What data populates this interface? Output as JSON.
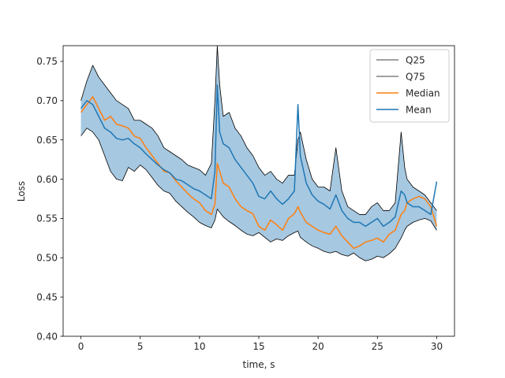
{
  "chart_data": {
    "type": "line",
    "title": "",
    "xlabel": "time, s",
    "ylabel": "Loss",
    "xlim": [
      -1.5,
      31.5
    ],
    "ylim": [
      0.4,
      0.77
    ],
    "xticks": [
      {
        "value": 0,
        "label": "0"
      },
      {
        "value": 5,
        "label": "5"
      },
      {
        "value": 10,
        "label": "10"
      },
      {
        "value": 15,
        "label": "15"
      },
      {
        "value": 20,
        "label": "20"
      },
      {
        "value": 25,
        "label": "25"
      },
      {
        "value": 30,
        "label": "30"
      }
    ],
    "yticks": [
      {
        "value": 0.4,
        "label": "0.40"
      },
      {
        "value": 0.45,
        "label": "0.45"
      },
      {
        "value": 0.5,
        "label": "0.50"
      },
      {
        "value": 0.55,
        "label": "0.55"
      },
      {
        "value": 0.6,
        "label": "0.60"
      },
      {
        "value": 0.65,
        "label": "0.65"
      },
      {
        "value": 0.7,
        "label": "0.70"
      },
      {
        "value": 0.75,
        "label": "0.75"
      }
    ],
    "grid": false,
    "legend_position": "top-right",
    "band_color": "#a6c8e1",
    "x": [
      0,
      0.5,
      1,
      1.5,
      2,
      2.5,
      3,
      3.5,
      4,
      4.5,
      5,
      5.5,
      6,
      6.5,
      7,
      7.5,
      8,
      8.5,
      9,
      9.5,
      10,
      10.5,
      11,
      11.3,
      11.5,
      11.7,
      12,
      12.5,
      13,
      13.5,
      14,
      14.5,
      15,
      15.5,
      16,
      16.5,
      17,
      17.5,
      18,
      18.3,
      18.5,
      19,
      19.5,
      20,
      20.5,
      21,
      21.5,
      22,
      22.5,
      23,
      23.5,
      24,
      24.5,
      25,
      25.5,
      26,
      26.5,
      27,
      27.3,
      27.5,
      28,
      28.5,
      29,
      29.5,
      30
    ],
    "series": [
      {
        "name": "Q25",
        "color": "#000000",
        "line_width": 0.8,
        "values": [
          0.655,
          0.665,
          0.66,
          0.65,
          0.63,
          0.61,
          0.6,
          0.598,
          0.615,
          0.61,
          0.618,
          0.612,
          0.602,
          0.592,
          0.585,
          0.582,
          0.572,
          0.565,
          0.558,
          0.552,
          0.545,
          0.541,
          0.538,
          0.548,
          0.562,
          0.558,
          0.552,
          0.546,
          0.541,
          0.535,
          0.53,
          0.528,
          0.532,
          0.526,
          0.52,
          0.524,
          0.522,
          0.528,
          0.532,
          0.534,
          0.526,
          0.52,
          0.515,
          0.512,
          0.508,
          0.506,
          0.508,
          0.504,
          0.502,
          0.506,
          0.5,
          0.496,
          0.498,
          0.502,
          0.5,
          0.505,
          0.512,
          0.525,
          0.535,
          0.54,
          0.545,
          0.548,
          0.55,
          0.547,
          0.535
        ]
      },
      {
        "name": "Q75",
        "color": "#000000",
        "line_width": 0.8,
        "values": [
          0.7,
          0.725,
          0.745,
          0.73,
          0.72,
          0.71,
          0.7,
          0.695,
          0.69,
          0.675,
          0.675,
          0.67,
          0.665,
          0.655,
          0.64,
          0.635,
          0.63,
          0.625,
          0.618,
          0.615,
          0.612,
          0.605,
          0.62,
          0.7,
          0.77,
          0.72,
          0.68,
          0.685,
          0.665,
          0.655,
          0.64,
          0.63,
          0.615,
          0.605,
          0.61,
          0.6,
          0.595,
          0.605,
          0.605,
          0.65,
          0.66,
          0.625,
          0.6,
          0.59,
          0.59,
          0.585,
          0.64,
          0.585,
          0.565,
          0.56,
          0.555,
          0.555,
          0.565,
          0.57,
          0.56,
          0.56,
          0.57,
          0.66,
          0.615,
          0.6,
          0.59,
          0.585,
          0.58,
          0.57,
          0.56
        ]
      },
      {
        "name": "Median",
        "color": "#ff7f0e",
        "line_width": 1.5,
        "values": [
          0.685,
          0.695,
          0.705,
          0.69,
          0.675,
          0.68,
          0.67,
          0.668,
          0.665,
          0.655,
          0.652,
          0.64,
          0.63,
          0.62,
          0.61,
          0.608,
          0.598,
          0.59,
          0.582,
          0.575,
          0.57,
          0.56,
          0.555,
          0.568,
          0.62,
          0.61,
          0.595,
          0.59,
          0.575,
          0.565,
          0.56,
          0.556,
          0.54,
          0.535,
          0.548,
          0.542,
          0.535,
          0.55,
          0.556,
          0.565,
          0.558,
          0.545,
          0.54,
          0.535,
          0.532,
          0.53,
          0.54,
          0.528,
          0.52,
          0.512,
          0.515,
          0.52,
          0.522,
          0.525,
          0.52,
          0.53,
          0.535,
          0.555,
          0.56,
          0.57,
          0.575,
          0.578,
          0.575,
          0.565,
          0.54
        ]
      },
      {
        "name": "Mean",
        "color": "#1f77b4",
        "line_width": 1.5,
        "values": [
          0.69,
          0.7,
          0.695,
          0.68,
          0.665,
          0.66,
          0.652,
          0.65,
          0.652,
          0.645,
          0.64,
          0.632,
          0.625,
          0.618,
          0.612,
          0.608,
          0.6,
          0.598,
          0.593,
          0.588,
          0.585,
          0.58,
          0.575,
          0.61,
          0.72,
          0.66,
          0.645,
          0.64,
          0.625,
          0.615,
          0.605,
          0.595,
          0.578,
          0.575,
          0.585,
          0.575,
          0.568,
          0.575,
          0.585,
          0.695,
          0.63,
          0.595,
          0.58,
          0.572,
          0.568,
          0.562,
          0.58,
          0.56,
          0.55,
          0.545,
          0.545,
          0.54,
          0.545,
          0.55,
          0.54,
          0.545,
          0.552,
          0.585,
          0.58,
          0.57,
          0.565,
          0.565,
          0.56,
          0.555,
          0.597
        ]
      }
    ]
  }
}
